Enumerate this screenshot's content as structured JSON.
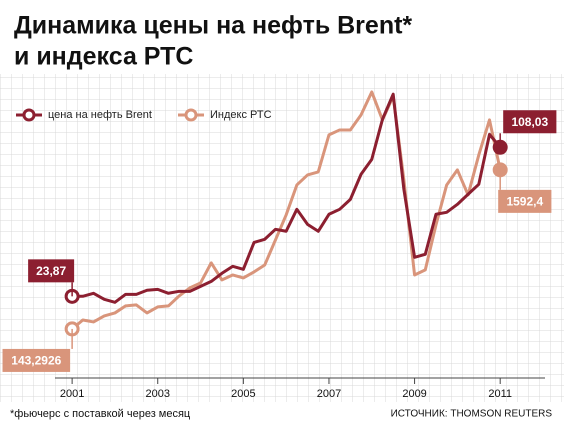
{
  "chart_data": {
    "type": "line",
    "title": [
      "Динамика цены на нефть Brent*",
      "и индекса РТС"
    ],
    "note": "*фьючерс с поставкой через месяц",
    "source": "ИСТОЧНИК: THOMSON REUTERS",
    "x": [
      2001,
      2001.25,
      2001.5,
      2001.75,
      2002,
      2002.25,
      2002.5,
      2002.75,
      2003,
      2003.25,
      2003.5,
      2003.75,
      2004,
      2004.25,
      2004.5,
      2004.75,
      2005,
      2005.25,
      2005.5,
      2005.75,
      2006,
      2006.25,
      2006.5,
      2006.75,
      2007,
      2007.25,
      2007.5,
      2007.75,
      2008,
      2008.25,
      2008.5,
      2008.75,
      2009,
      2009.25,
      2009.5,
      2009.75,
      2010,
      2010.25,
      2010.5,
      2010.75,
      2011
    ],
    "xlim": [
      2000.6,
      2011.93
    ],
    "xticks": [
      2001,
      2003,
      2005,
      2007,
      2009,
      2011
    ],
    "ylim": [
      -29,
      146
    ],
    "y2lim": [
      -413,
      2411
    ],
    "series": [
      {
        "name": "цена на нефть Brent",
        "color": "#8c1f30",
        "values": [
          23.87,
          23.9,
          25.6,
          22.2,
          20.5,
          25.0,
          25.0,
          27.3,
          27.8,
          25.6,
          26.7,
          26.7,
          29.5,
          32.3,
          36.9,
          40.8,
          39.1,
          54.3,
          56.1,
          61.7,
          60.6,
          73.0,
          64.5,
          60.6,
          70.2,
          73.0,
          78.6,
          92.8,
          101.2,
          123.8,
          138.0,
          84.3,
          45.9,
          47.6,
          70.2,
          71.3,
          75.8,
          81.5,
          87.1,
          115.3,
          108.03
        ],
        "value_labels": [
          "23,87",
          null,
          null,
          null,
          null,
          null,
          null,
          null,
          null,
          null,
          null,
          null,
          null,
          null,
          null,
          null,
          null,
          null,
          null,
          null,
          null,
          null,
          null,
          null,
          null,
          null,
          null,
          null,
          null,
          null,
          null,
          null,
          null,
          null,
          null,
          null,
          null,
          null,
          null,
          null,
          "108,03"
        ]
      },
      {
        "name": "Индекс РТС",
        "color": "#d9957b",
        "axis": "y2",
        "values": [
          143.2926,
          225,
          207,
          262,
          289,
          353,
          362,
          289,
          344,
          353,
          444,
          517,
          562,
          745,
          590,
          635,
          608,
          663,
          726,
          954,
          1182,
          1455,
          1546,
          1574,
          1911,
          1956,
          1956,
          2093,
          2302,
          2047,
          2263,
          1501,
          635,
          681,
          1091,
          1455,
          1592,
          1364,
          1728,
          2047,
          1592.4
        ],
        "value_labels": [
          "143,2926",
          null,
          null,
          null,
          null,
          null,
          null,
          null,
          null,
          null,
          null,
          null,
          null,
          null,
          null,
          null,
          null,
          null,
          null,
          null,
          null,
          null,
          null,
          null,
          null,
          null,
          null,
          null,
          null,
          null,
          null,
          null,
          null,
          null,
          null,
          null,
          null,
          null,
          null,
          null,
          "1592,4"
        ]
      }
    ]
  }
}
